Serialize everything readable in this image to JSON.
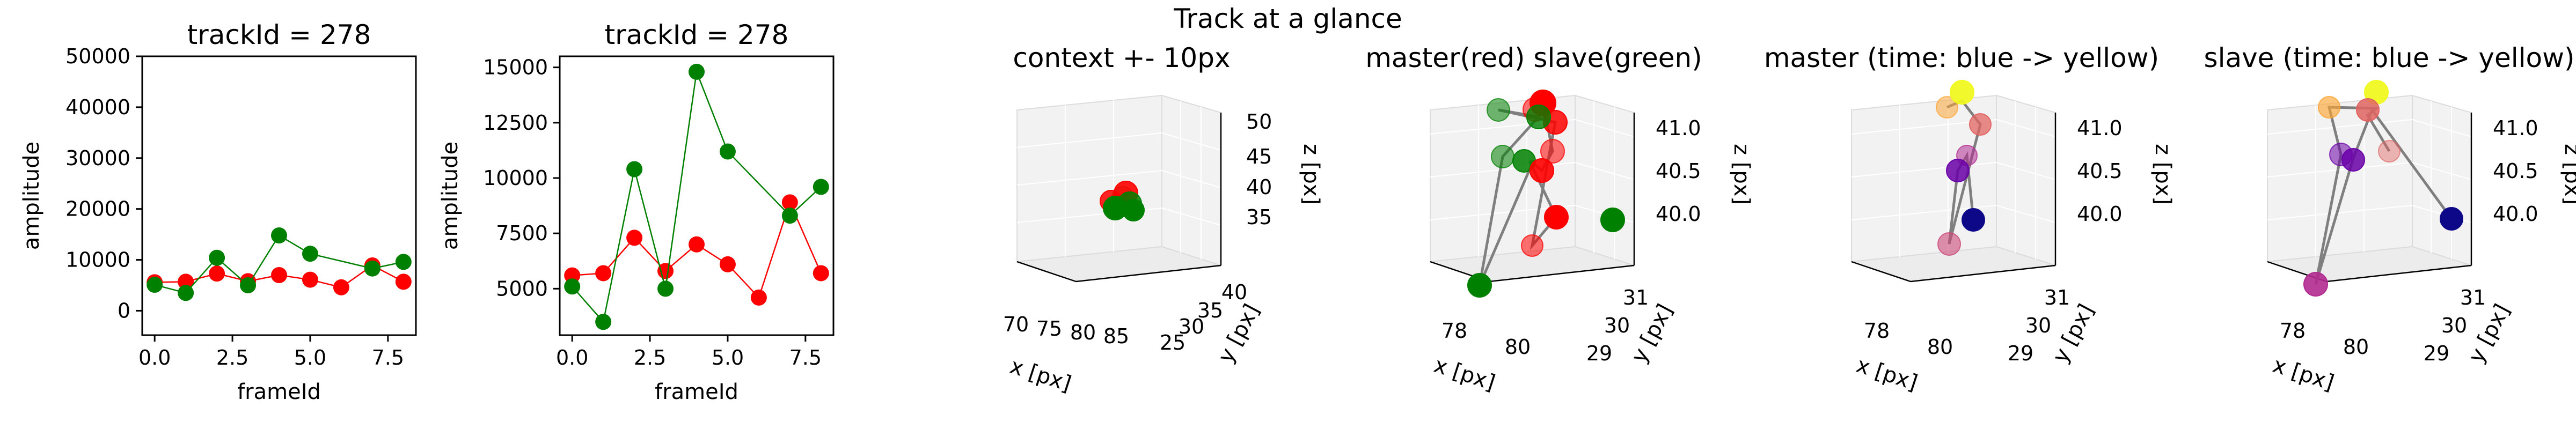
{
  "figure": {
    "suptitle": "Track at a glance"
  },
  "chart_data": [
    {
      "type": "line",
      "title": "trackId = 278",
      "xlabel": "frameId",
      "ylabel": "amplitude",
      "xlim": [
        -0.4,
        8.4
      ],
      "ylim": [
        -4800,
        50000
      ],
      "xticks": [
        0.0,
        2.5,
        5.0,
        7.5
      ],
      "xtick_labels": [
        "0.0",
        "2.5",
        "5.0",
        "7.5"
      ],
      "yticks": [
        0,
        10000,
        20000,
        30000,
        40000,
        50000
      ],
      "ytick_labels": [
        "0",
        "10000",
        "20000",
        "30000",
        "40000",
        "50000"
      ],
      "series": [
        {
          "color": "#ff0000",
          "x": [
            0,
            1,
            2,
            3,
            4,
            5,
            6,
            7,
            8
          ],
          "y": [
            5600,
            5700,
            7300,
            5800,
            7000,
            6100,
            4600,
            8900,
            5700
          ]
        },
        {
          "color": "#008000",
          "x": [
            0,
            1,
            2,
            3,
            4,
            5,
            7,
            8
          ],
          "y": [
            5100,
            3500,
            10400,
            5000,
            14800,
            11200,
            8300,
            9600
          ]
        }
      ]
    },
    {
      "type": "line",
      "title": "trackId = 278",
      "xlabel": "frameId",
      "ylabel": "amplitude",
      "xlim": [
        -0.4,
        8.4
      ],
      "ylim": [
        2900,
        15500
      ],
      "xticks": [
        0.0,
        2.5,
        5.0,
        7.5
      ],
      "xtick_labels": [
        "0.0",
        "2.5",
        "5.0",
        "7.5"
      ],
      "yticks": [
        5000,
        7500,
        10000,
        12500,
        15000
      ],
      "ytick_labels": [
        "5000",
        "7500",
        "10000",
        "12500",
        "15000"
      ],
      "series": [
        {
          "color": "#ff0000",
          "x": [
            0,
            1,
            2,
            3,
            4,
            5,
            6,
            7,
            8
          ],
          "y": [
            5600,
            5700,
            7300,
            5800,
            7000,
            6100,
            4600,
            8900,
            5700
          ]
        },
        {
          "color": "#008000",
          "x": [
            0,
            1,
            2,
            3,
            4,
            5,
            7,
            8
          ],
          "y": [
            5100,
            3500,
            10400,
            5000,
            14800,
            11200,
            8300,
            9600
          ]
        }
      ]
    },
    {
      "type": "scatter3d",
      "title": "context +- 10px",
      "xlabel": "x [px]",
      "ylabel": "y [px]",
      "zlabel": "z [px]",
      "xtick_labels": [
        "70",
        "75",
        "80",
        "85"
      ],
      "ytick_labels": [
        "25",
        "30",
        "35",
        "40"
      ],
      "ztick_labels": [
        "35",
        "40",
        "45",
        "50"
      ],
      "point_colors": [
        "#ff0000",
        "#008000"
      ]
    },
    {
      "type": "scatter3d",
      "title": "master(red) slave(green)",
      "xlabel": "x [px]",
      "ylabel": "y [px]",
      "zlabel": "z [px]",
      "xtick_labels": [
        "78",
        "80"
      ],
      "ytick_labels": [
        "29",
        "30",
        "31"
      ],
      "ztick_labels": [
        "40.0",
        "40.5",
        "41.0"
      ],
      "point_colors": [
        "#ff0000",
        "#008000"
      ]
    },
    {
      "type": "scatter3d",
      "title": "master (time: blue -> yellow)",
      "xlabel": "x [px]",
      "ylabel": "y [px]",
      "zlabel": "z [px]",
      "xtick_labels": [
        "78",
        "80"
      ],
      "ytick_labels": [
        "29",
        "30",
        "31"
      ],
      "ztick_labels": [
        "40.0",
        "40.5",
        "41.0"
      ],
      "point_colors": [
        "#0d0887",
        "#f0f921"
      ]
    },
    {
      "type": "scatter3d",
      "title": "slave (time: blue -> yellow)",
      "xlabel": "x [px]",
      "ylabel": "y [px]",
      "zlabel": "z [px]",
      "xtick_labels": [
        "78",
        "80"
      ],
      "ytick_labels": [
        "29",
        "30",
        "31"
      ],
      "ztick_labels": [
        "40.0",
        "40.5",
        "41.0"
      ],
      "point_colors": [
        "#0d0887",
        "#f0f921"
      ]
    }
  ]
}
